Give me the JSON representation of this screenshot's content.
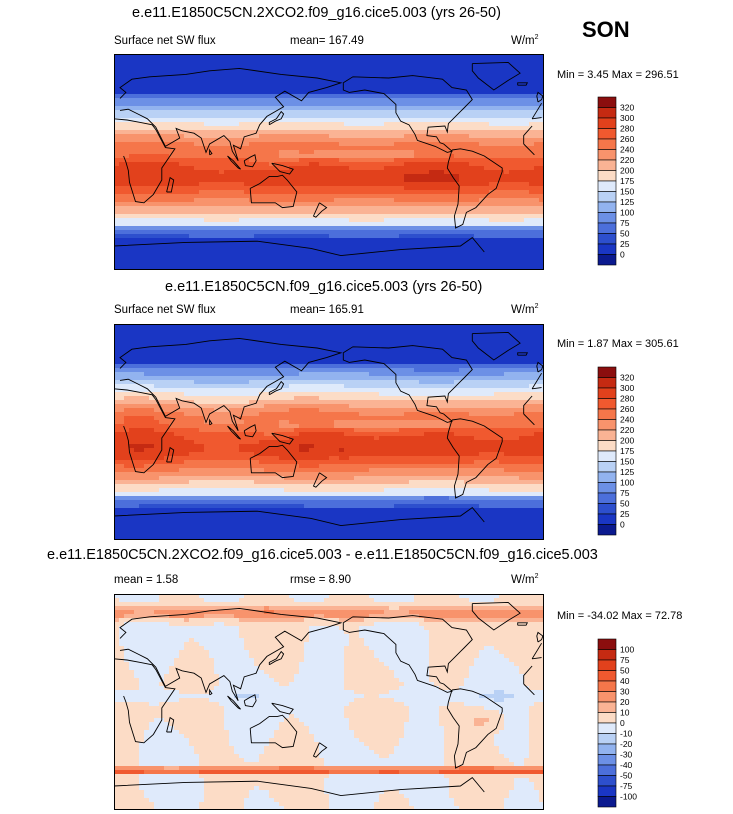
{
  "season": "SON",
  "chart_data": [
    {
      "type": "heatmap",
      "title": "e.e11.E1850C5CN.2XCO2.f09_g16.cice5.003 (yrs 26-50)",
      "variable": "Surface net SW flux",
      "mean_label": "mean= 167.49",
      "units_base": "W/m",
      "units_sup": "2",
      "minmax": "Min =   3.45 Max = 296.51",
      "min": 3.45,
      "max": 296.51,
      "mean": 167.49,
      "scale": "abs",
      "colorbar": {
        "levels": [
          "320",
          "300",
          "280",
          "260",
          "240",
          "220",
          "200",
          "175",
          "150",
          "125",
          "100",
          "75",
          "50",
          "25",
          "0"
        ],
        "colors": [
          "#8b0e0e",
          "#c52a12",
          "#e2411c",
          "#f0592f",
          "#f5764a",
          "#f8936c",
          "#fab394",
          "#fcdcc6",
          "#dfeafb",
          "#b9d1f5",
          "#92b3ef",
          "#6c90e6",
          "#4c6fdb",
          "#2d4fcd",
          "#1a36c4",
          "#0b1a8f"
        ]
      }
    },
    {
      "type": "heatmap",
      "title": "e.e11.E1850C5CN.f09_g16.cice5.003 (yrs 26-50)",
      "variable": "Surface net SW flux",
      "mean_label": "mean= 165.91",
      "units_base": "W/m",
      "units_sup": "2",
      "minmax": "Min =   1.87 Max = 305.61",
      "min": 1.87,
      "max": 305.61,
      "mean": 165.91,
      "scale": "abs",
      "colorbar": {
        "levels": [
          "320",
          "300",
          "280",
          "260",
          "240",
          "220",
          "200",
          "175",
          "150",
          "125",
          "100",
          "75",
          "50",
          "25",
          "0"
        ],
        "colors": [
          "#8b0e0e",
          "#c52a12",
          "#e2411c",
          "#f0592f",
          "#f5764a",
          "#f8936c",
          "#fab394",
          "#fcdcc6",
          "#dfeafb",
          "#b9d1f5",
          "#92b3ef",
          "#6c90e6",
          "#4c6fdb",
          "#2d4fcd",
          "#1a36c4",
          "#0b1a8f"
        ]
      }
    },
    {
      "type": "heatmap",
      "title": "e.e11.E1850C5CN.2XCO2.f09_g16.cice5.003 - e.e11.E1850C5CN.f09_g16.cice5.003",
      "variable": "",
      "mean_label": "mean =   1.58",
      "rmse_label": "rmse =   8.90",
      "units_base": "W/m",
      "units_sup": "2",
      "minmax": "Min = -34.02 Max =  72.78",
      "min": -34.02,
      "max": 72.78,
      "mean": 1.58,
      "rmse": 8.9,
      "scale": "diff",
      "colorbar": {
        "levels": [
          "100",
          "75",
          "50",
          "40",
          "30",
          "20",
          "10",
          "0",
          "-10",
          "-20",
          "-30",
          "-40",
          "-50",
          "-75",
          "-100"
        ],
        "colors": [
          "#8b0e0e",
          "#c52a12",
          "#e2411c",
          "#f0592f",
          "#f5764a",
          "#f8936c",
          "#fab394",
          "#fcdcc6",
          "#dfeafb",
          "#b9d1f5",
          "#92b3ef",
          "#6c90e6",
          "#4c6fdb",
          "#2d4fcd",
          "#1a36c4",
          "#0b1a8f"
        ]
      }
    }
  ]
}
